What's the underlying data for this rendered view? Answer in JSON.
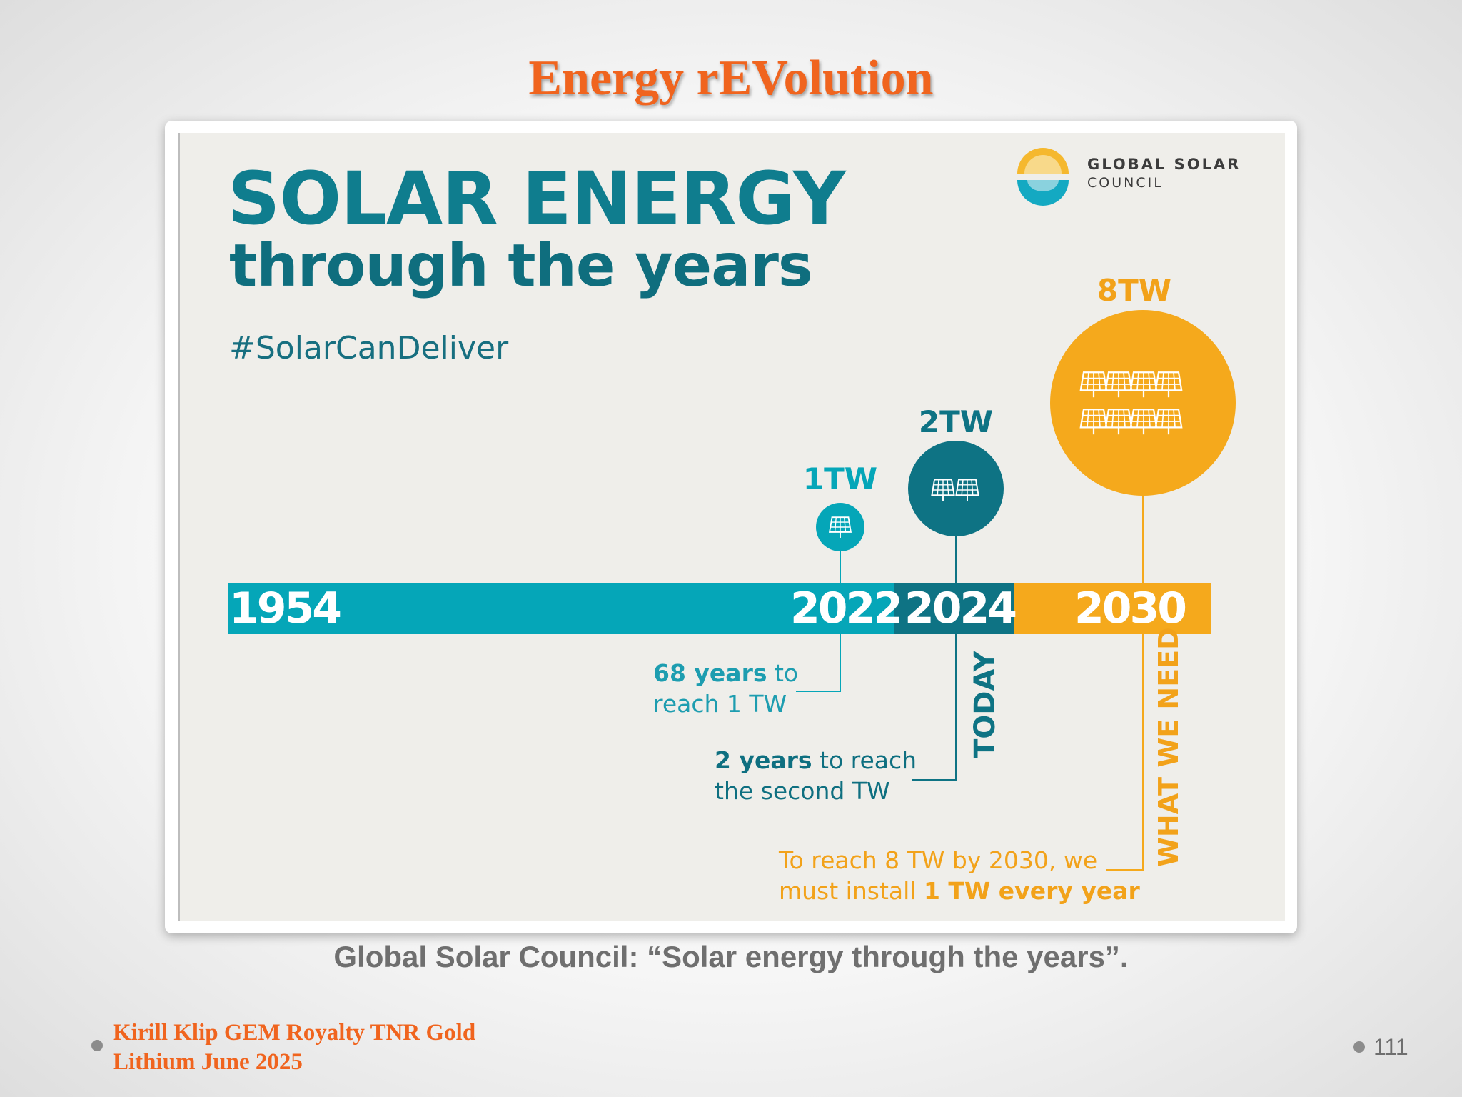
{
  "slide": {
    "title": "Energy rEVolution",
    "caption": "Global Solar Council: “Solar energy through the years”.",
    "footer_line1": "Kirill Klip GEM Royalty TNR Gold",
    "footer_line2": "Lithium June 2025",
    "page_number": "111"
  },
  "infographic": {
    "headline_line1": "SOLAR ENERGY",
    "headline_line2": "through the years",
    "hashtag": "#SolarCanDeliver",
    "logo_line1": "GLOBAL SOLAR",
    "logo_line2": "COUNCIL",
    "milestones": [
      {
        "label": "1TW",
        "year": "2022",
        "panels": 1
      },
      {
        "label": "2TW",
        "year": "2024",
        "panels": 2
      },
      {
        "label": "8TW",
        "year": "2030",
        "panels": 8
      }
    ],
    "start_year": "1954",
    "notes": {
      "n1_bold": "68 years",
      "n1_rest": " to",
      "n1_line2": "reach 1 TW",
      "n2_bold": "2 years",
      "n2_rest": " to reach",
      "n2_line2": "the second TW",
      "n3_line1": "To reach 8 TW by 2030, we",
      "n3_plain": "must install ",
      "n3_bold": "1 TW every year"
    },
    "vertical_today": "TODAY",
    "vertical_need": "WHAT WE NEED",
    "colors": {
      "teal_light": "#05a6b8",
      "teal_dark": "#0e7384",
      "orange": "#f5a91c",
      "orange_text": "#f2a21a"
    }
  }
}
